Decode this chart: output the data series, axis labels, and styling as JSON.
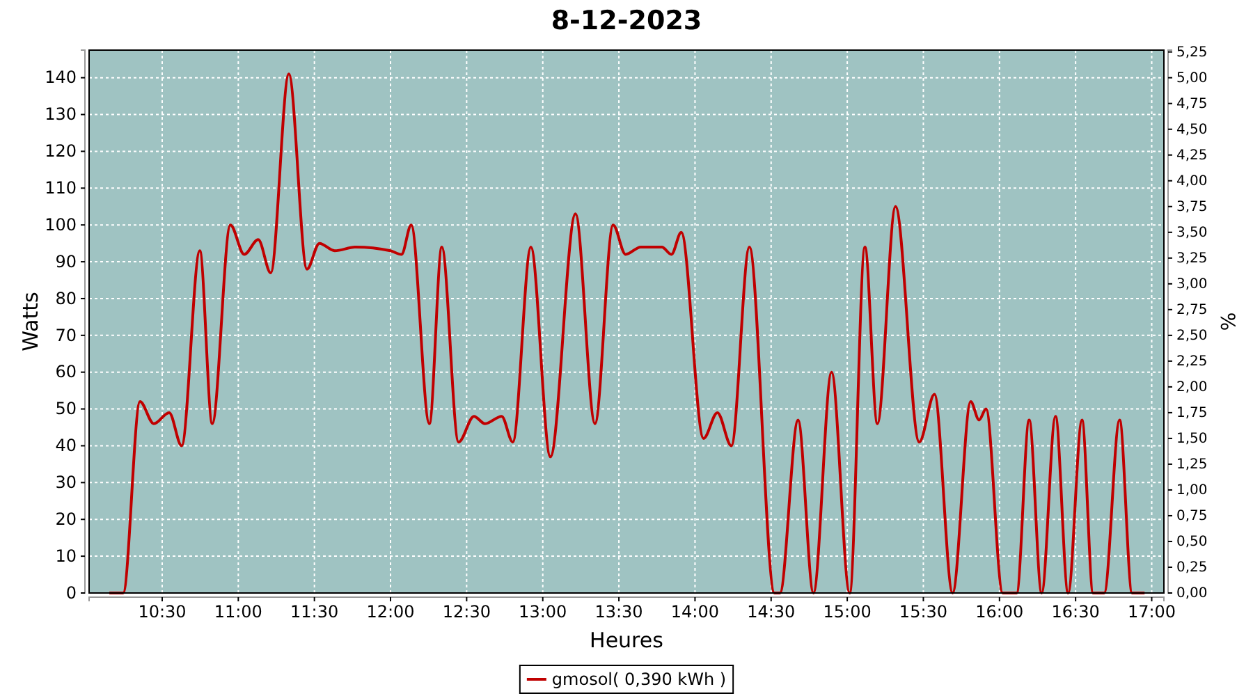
{
  "chart_data": {
    "type": "line",
    "title": "8-12-2023",
    "xlabel": "Heures",
    "ylabel": "Watts",
    "y2label": "%",
    "xlim": [
      10.02,
      17.08
    ],
    "xticks": [
      {
        "value": 10.5,
        "label": "10:30"
      },
      {
        "value": 11,
        "label": "11:00"
      },
      {
        "value": 11.5,
        "label": "11:30"
      },
      {
        "value": 12,
        "label": "12:00"
      },
      {
        "value": 12.5,
        "label": "12:30"
      },
      {
        "value": 13,
        "label": "13:00"
      },
      {
        "value": 13.5,
        "label": "13:30"
      },
      {
        "value": 14,
        "label": "14:00"
      },
      {
        "value": 14.5,
        "label": "14:30"
      },
      {
        "value": 15,
        "label": "15:00"
      },
      {
        "value": 15.5,
        "label": "15:30"
      },
      {
        "value": 16,
        "label": "16:00"
      },
      {
        "value": 16.5,
        "label": "16:30"
      },
      {
        "value": 17,
        "label": "17:00"
      }
    ],
    "ylim": [
      0,
      147.5
    ],
    "yticks": [
      0,
      10,
      20,
      30,
      40,
      50,
      60,
      70,
      80,
      90,
      100,
      110,
      120,
      130,
      140
    ],
    "y2lim": [
      0,
      5.268
    ],
    "y2ticks": [
      {
        "value": 0,
        "label": "0,00"
      },
      {
        "value": 0.25,
        "label": "0,25"
      },
      {
        "value": 0.5,
        "label": "0,50"
      },
      {
        "value": 0.75,
        "label": "0,75"
      },
      {
        "value": 1,
        "label": "1,00"
      },
      {
        "value": 1.25,
        "label": "1,25"
      },
      {
        "value": 1.5,
        "label": "1,50"
      },
      {
        "value": 1.75,
        "label": "1,75"
      },
      {
        "value": 2,
        "label": "2,00"
      },
      {
        "value": 2.25,
        "label": "2,25"
      },
      {
        "value": 2.5,
        "label": "2,50"
      },
      {
        "value": 2.75,
        "label": "2,75"
      },
      {
        "value": 3,
        "label": "3,00"
      },
      {
        "value": 3.25,
        "label": "3,25"
      },
      {
        "value": 3.5,
        "label": "3,50"
      },
      {
        "value": 3.75,
        "label": "3,75"
      },
      {
        "value": 4,
        "label": "4,00"
      },
      {
        "value": 4.25,
        "label": "4,25"
      },
      {
        "value": 4.5,
        "label": "4,50"
      },
      {
        "value": 4.75,
        "label": "4,75"
      },
      {
        "value": 5,
        "label": "5,00"
      },
      {
        "value": 5.25,
        "label": "5,25"
      }
    ],
    "grid": true,
    "legend": "bottom",
    "line_style": "solid",
    "marker": "none",
    "series": [
      {
        "name": "gmosol( 0,390 kWh )",
        "color": "#c00000",
        "x": [
          10.153,
          10.244,
          10.354,
          10.445,
          10.546,
          10.628,
          10.747,
          10.829,
          10.948,
          11.039,
          11.131,
          11.213,
          11.332,
          11.451,
          11.533,
          11.633,
          11.771,
          11.999,
          12.072,
          12.136,
          12.255,
          12.337,
          12.447,
          12.548,
          12.621,
          12.73,
          12.803,
          12.922,
          13.05,
          13.215,
          13.343,
          13.462,
          13.544,
          13.644,
          13.782,
          13.845,
          13.91,
          14.056,
          14.147,
          14.239,
          14.357,
          14.522,
          14.558,
          14.677,
          14.778,
          14.897,
          15.016,
          15.116,
          15.198,
          15.317,
          15.473,
          15.573,
          15.692,
          15.811,
          15.866,
          15.912,
          16.021,
          16.113,
          16.195,
          16.277,
          16.368,
          16.451,
          16.542,
          16.615,
          16.688,
          16.789,
          16.871,
          16.953
        ],
        "values": [
          0,
          0,
          52,
          46,
          49,
          40,
          93,
          46,
          100,
          92,
          96,
          87,
          141,
          88,
          95,
          93,
          94,
          93,
          92,
          100,
          46,
          94,
          41,
          48,
          46,
          48,
          41,
          94,
          37,
          103,
          46,
          100,
          92,
          94,
          94,
          92,
          98,
          42,
          49,
          40,
          94,
          0,
          0,
          47,
          0,
          60,
          0,
          94,
          46,
          105,
          41,
          54,
          0,
          52,
          47,
          50,
          0,
          0,
          47,
          0,
          48,
          0,
          47,
          0,
          0,
          47,
          0,
          0
        ]
      }
    ]
  }
}
